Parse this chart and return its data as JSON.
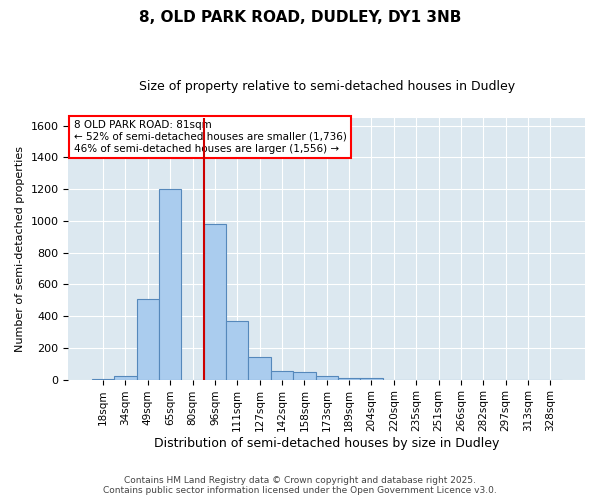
{
  "title1": "8, OLD PARK ROAD, DUDLEY, DY1 3NB",
  "title2": "Size of property relative to semi-detached houses in Dudley",
  "xlabel": "Distribution of semi-detached houses by size in Dudley",
  "ylabel": "Number of semi-detached properties",
  "categories": [
    "18sqm",
    "34sqm",
    "49sqm",
    "65sqm",
    "80sqm",
    "96sqm",
    "111sqm",
    "127sqm",
    "142sqm",
    "158sqm",
    "173sqm",
    "189sqm",
    "204sqm",
    "220sqm",
    "235sqm",
    "251sqm",
    "266sqm",
    "282sqm",
    "297sqm",
    "313sqm",
    "328sqm"
  ],
  "values": [
    5,
    25,
    510,
    1200,
    0,
    980,
    370,
    140,
    55,
    45,
    25,
    10,
    10,
    0,
    0,
    0,
    0,
    0,
    0,
    0,
    0
  ],
  "bar_color": "#aaccee",
  "bar_edge_color": "#5588bb",
  "bar_edge_width": 0.8,
  "ref_line_color": "#cc0000",
  "ref_line_x": 4.5,
  "annotation_text": "8 OLD PARK ROAD: 81sqm\n← 52% of semi-detached houses are smaller (1,736)\n46% of semi-detached houses are larger (1,556) →",
  "ylim": [
    0,
    1650
  ],
  "yticks": [
    0,
    200,
    400,
    600,
    800,
    1000,
    1200,
    1400,
    1600
  ],
  "footer1": "Contains HM Land Registry data © Crown copyright and database right 2025.",
  "footer2": "Contains public sector information licensed under the Open Government Licence v3.0.",
  "fig_bg_color": "#ffffff",
  "plot_bg_color": "#dce8f0",
  "grid_color": "#ffffff",
  "title1_fontsize": 11,
  "title2_fontsize": 9,
  "xlabel_fontsize": 9,
  "ylabel_fontsize": 8
}
